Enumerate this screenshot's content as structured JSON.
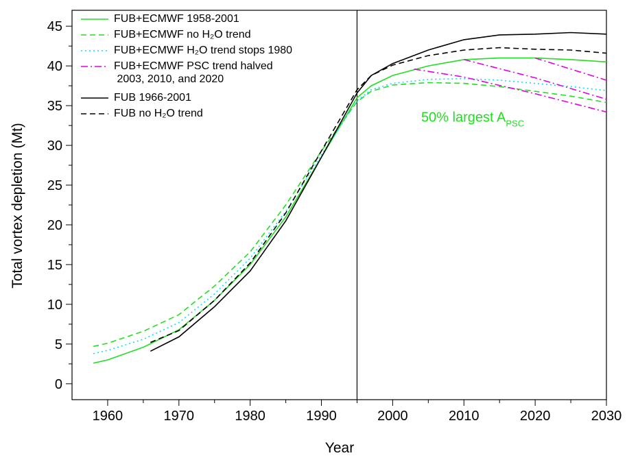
{
  "chart_data": {
    "type": "line",
    "xlabel": "Year",
    "ylabel": "Total vortex depletion (Mt)",
    "xlim": [
      1955,
      2030
    ],
    "ylim": [
      -2,
      47
    ],
    "xticks": [
      1960,
      1970,
      1980,
      1990,
      2000,
      2010,
      2020,
      2030
    ],
    "yticks": [
      0,
      5,
      10,
      15,
      20,
      25,
      30,
      35,
      40,
      45
    ],
    "vline": 1995,
    "annotation": {
      "text": "50% largest A",
      "subscript": "PSC",
      "x": 2004,
      "y": 33,
      "color": "#22dd22"
    },
    "series": [
      {
        "name": "FUB+ECMWF 1958-2001",
        "color": "#22dd22",
        "dash": "solid",
        "x": [
          1958,
          1960,
          1965,
          1970,
          1975,
          1980,
          1985,
          1990,
          1995,
          1997,
          2000,
          2005,
          2010,
          2015,
          2020,
          2025,
          2030
        ],
        "values": [
          2.6,
          3.0,
          4.6,
          6.8,
          10.5,
          15,
          21,
          28.5,
          36,
          37.5,
          38.8,
          40.0,
          40.8,
          41.0,
          41.0,
          40.8,
          40.5
        ]
      },
      {
        "name": "FUB+ECMWF no H₂O trend",
        "color": "#22dd22",
        "dash": "dashed",
        "x": [
          1958,
          1960,
          1965,
          1970,
          1975,
          1980,
          1985,
          1990,
          1995,
          1997,
          2000,
          2005,
          2010,
          2015,
          2020,
          2025,
          2030
        ],
        "values": [
          4.7,
          5.1,
          6.6,
          8.7,
          12.3,
          16.6,
          22.5,
          29.3,
          35.5,
          36.8,
          37.6,
          37.9,
          37.8,
          37.4,
          36.8,
          36.2,
          35.4
        ]
      },
      {
        "name": "FUB+ECMWF H₂O trend stops 1980",
        "color": "#00ddff",
        "dash": "dotted",
        "x": [
          1958,
          1960,
          1965,
          1970,
          1975,
          1980,
          1985,
          1990,
          1995,
          1997,
          2000,
          2005,
          2010,
          2015,
          2020,
          2025,
          2030
        ],
        "values": [
          3.8,
          4.2,
          5.6,
          7.7,
          11.3,
          15.8,
          21.7,
          28.8,
          35.6,
          37.0,
          37.8,
          38.3,
          38.4,
          38.2,
          37.8,
          37.4,
          36.9
        ]
      },
      {
        "name": "FUB+ECMWF PSC trend halved\n 2003, 2010, and 2020",
        "color": "#e000e0",
        "dash": "dashdot",
        "x": [
          2003,
          2010,
          2020,
          2030,
          null,
          2010,
          2020,
          2030,
          null,
          2020,
          2030
        ],
        "values": [
          39.6,
          38.6,
          36.5,
          34.2,
          null,
          40.8,
          38.5,
          35.8,
          null,
          41.0,
          38.2
        ]
      },
      {
        "name": "FUB 1966-2001",
        "color": "#000000",
        "dash": "solid",
        "x": [
          1966,
          1970,
          1975,
          1980,
          1985,
          1990,
          1995,
          1997,
          2000,
          2005,
          2010,
          2015,
          2020,
          2025,
          2030
        ],
        "values": [
          4.1,
          5.9,
          9.7,
          14.2,
          20.5,
          28.5,
          36.6,
          38.8,
          40.3,
          42.0,
          43.3,
          43.9,
          44.0,
          44.2,
          44.0
        ]
      },
      {
        "name": "FUB no H₂O trend",
        "color": "#000000",
        "dash": "dashed",
        "x": [
          1966,
          1970,
          1975,
          1980,
          1985,
          1990,
          1995,
          1997,
          2000,
          2005,
          2010,
          2015,
          2020,
          2025,
          2030
        ],
        "values": [
          5.2,
          6.7,
          10.5,
          15.2,
          21.5,
          29.3,
          37.0,
          38.8,
          40.1,
          41.3,
          42.0,
          42.3,
          42.1,
          42.0,
          41.6
        ]
      }
    ]
  }
}
